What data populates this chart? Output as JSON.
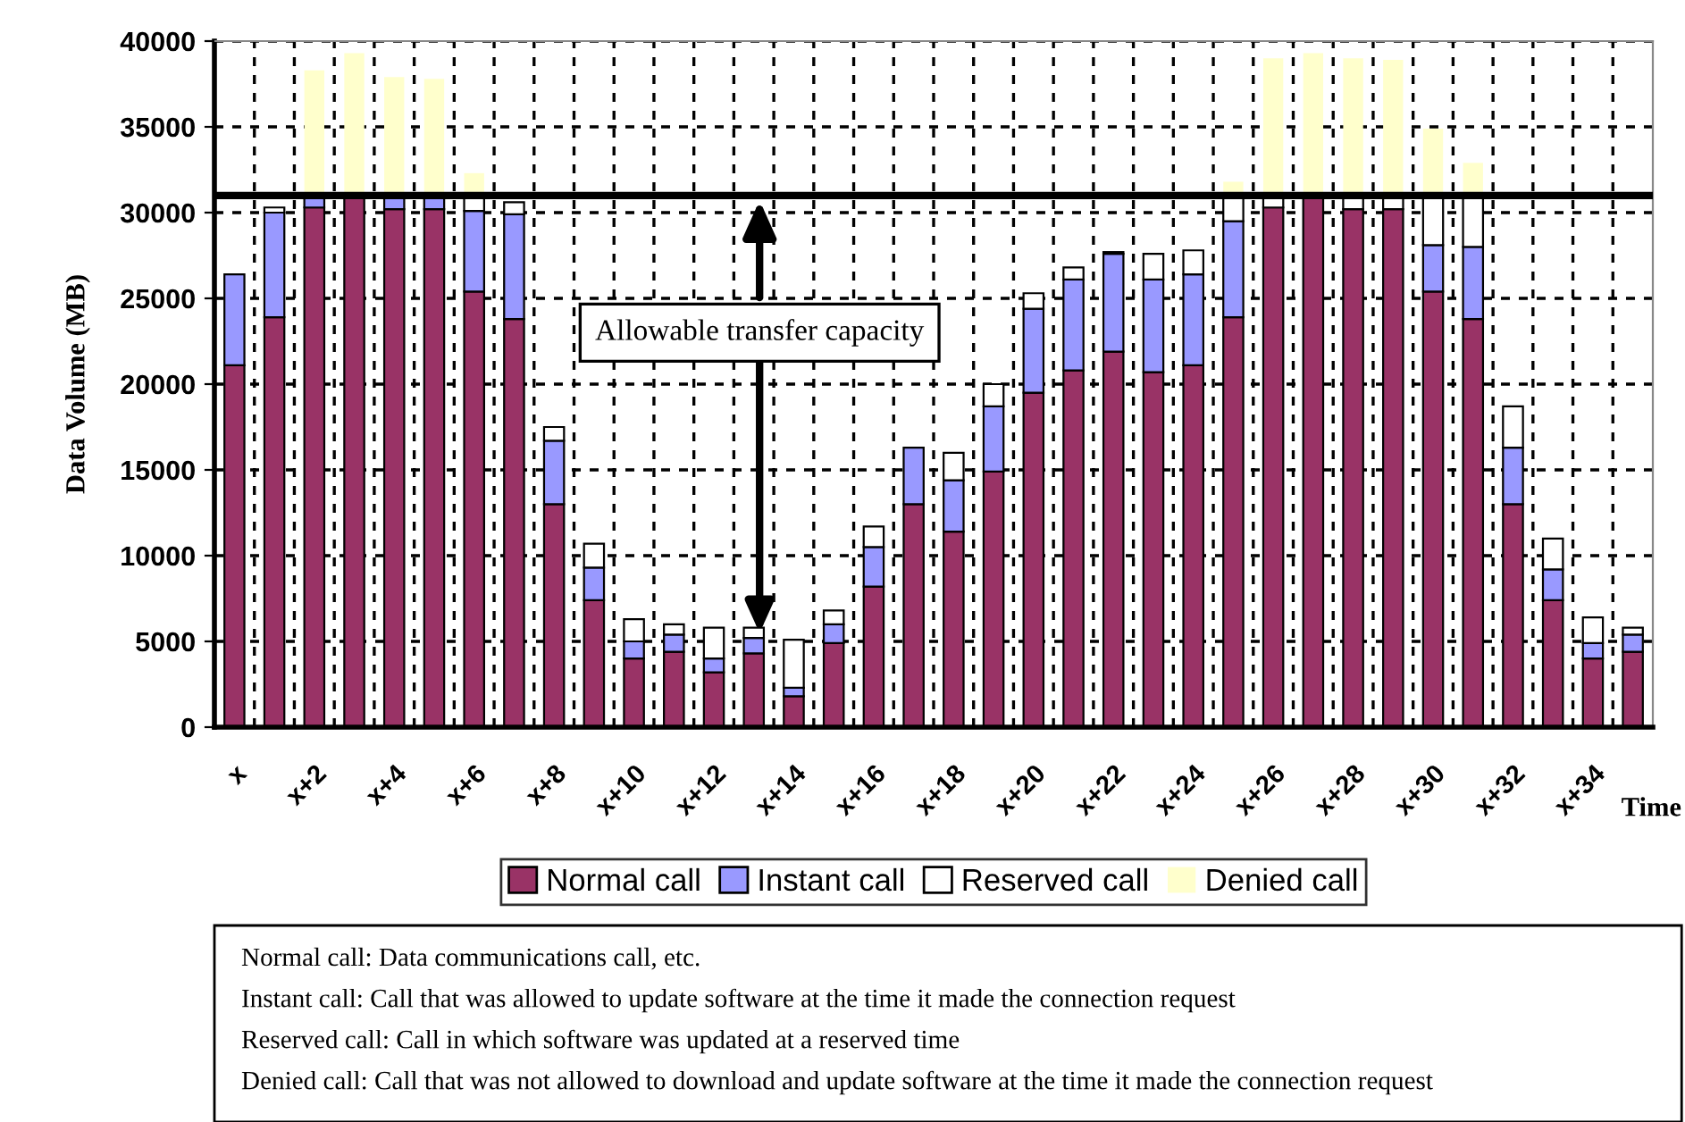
{
  "chart_data": {
    "type": "bar",
    "stacked": true,
    "xlabel": "Time",
    "ylabel": "Data Volume (MB)",
    "categories": [
      "x",
      null,
      "x+2",
      null,
      "x+4",
      null,
      "x+6",
      null,
      "x+8",
      null,
      "x+10",
      null,
      "x+12",
      null,
      "x+14",
      null,
      "x+16",
      null,
      "x+18",
      null,
      "x+20",
      null,
      "x+22",
      null,
      "x+24",
      null,
      "x+26",
      null,
      "x+28",
      null,
      "x+30",
      null,
      "x+32",
      null,
      "x+34",
      null
    ],
    "series": [
      {
        "name": "Normal call",
        "color": "#993366",
        "values": [
          21100,
          23900,
          30300,
          31000,
          30200,
          30200,
          25400,
          23800,
          13000,
          7400,
          4000,
          4400,
          3200,
          4300,
          1800,
          4900,
          8200,
          13000,
          11400,
          14900,
          19500,
          20800,
          21900,
          20700,
          21100,
          23900,
          30300,
          31000,
          30200,
          30200,
          25400,
          23800,
          13000,
          7400,
          4000,
          4400
        ]
      },
      {
        "name": "Instant call",
        "color": "#9999ff",
        "values": [
          5300,
          6100,
          700,
          0,
          800,
          800,
          4700,
          6100,
          3700,
          1900,
          1000,
          1000,
          800,
          900,
          500,
          1100,
          2300,
          3300,
          3000,
          3800,
          4900,
          5300,
          5700,
          5400,
          5300,
          5600,
          0,
          0,
          0,
          0,
          2700,
          4200,
          3300,
          1800,
          900,
          1000
        ]
      },
      {
        "name": "Reserved call",
        "color": "#ffffff",
        "values": [
          0,
          300,
          0,
          0,
          0,
          0,
          900,
          700,
          800,
          1400,
          1300,
          600,
          1800,
          600,
          2800,
          800,
          1200,
          0,
          1600,
          1300,
          900,
          700,
          100,
          1500,
          1400,
          1500,
          700,
          0,
          800,
          800,
          2900,
          3000,
          2400,
          1800,
          1500,
          400
        ]
      },
      {
        "name": "Denied call",
        "color": "#ffffcc",
        "values": [
          0,
          0,
          7300,
          8300,
          6900,
          6800,
          1300,
          0,
          0,
          0,
          0,
          0,
          0,
          0,
          0,
          0,
          0,
          0,
          0,
          0,
          0,
          0,
          0,
          0,
          0,
          800,
          8000,
          8300,
          8000,
          7900,
          3900,
          1900,
          0,
          0,
          0,
          0
        ]
      }
    ],
    "ylim": [
      0,
      40000
    ],
    "yticks": [
      0,
      5000,
      10000,
      15000,
      20000,
      25000,
      30000,
      35000,
      40000
    ],
    "grid": true,
    "legend": "bottom",
    "ref_lines": [
      {
        "axis": "y",
        "value": 31000,
        "label": "Allowable transfer capacity",
        "color": "#000000"
      }
    ],
    "annotations": [
      "Normal call: Data communications call, etc.",
      "Instant call: Call that was allowed to update software at the time it made the connection request",
      "Reserved call: Call in which software was updated at a reserved time",
      "Denied call: Call that was not allowed to download and update software at the time it made the connection request"
    ]
  }
}
